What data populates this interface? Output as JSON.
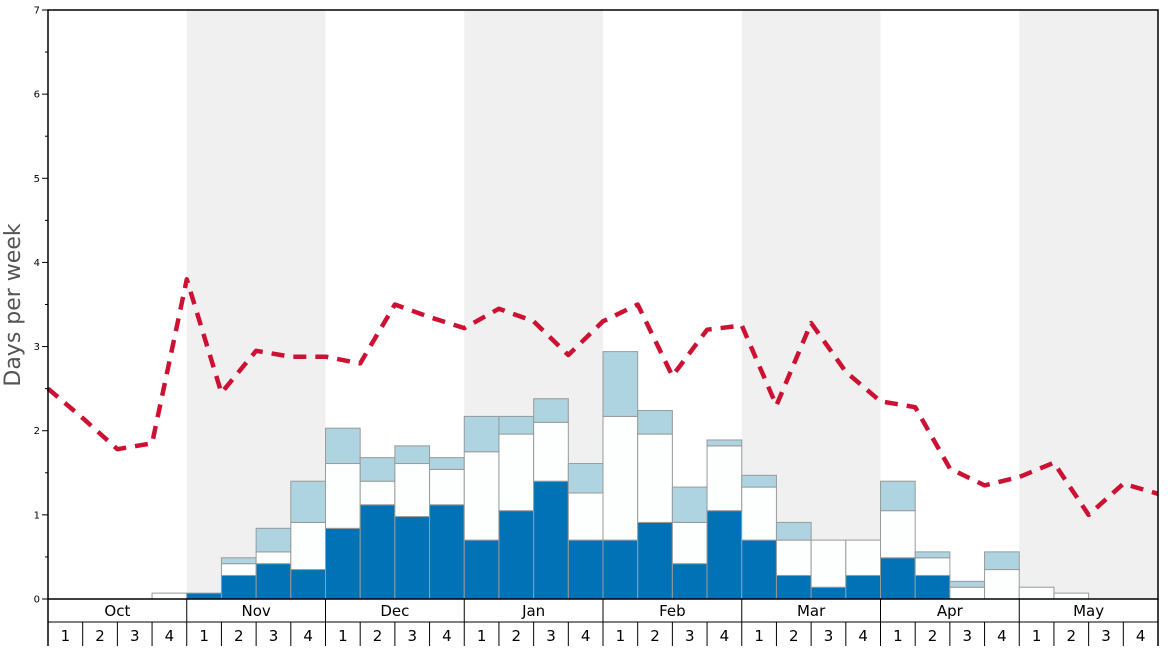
{
  "chart_data": {
    "type": "bar",
    "ylabel": "Days per week",
    "ylim": [
      0,
      7
    ],
    "yticks": [
      "0",
      "1",
      "2",
      "3",
      "4",
      "5",
      "6",
      "7"
    ],
    "months": [
      "Oct",
      "Nov",
      "Dec",
      "Jan",
      "Feb",
      "Mar",
      "Apr",
      "May"
    ],
    "weeks": [
      "1",
      "2",
      "3",
      "4"
    ],
    "shaded_months": [
      "Nov",
      "Jan",
      "Mar",
      "May"
    ],
    "stack_segments": [
      {
        "key": "dark",
        "color": "#0072B5"
      },
      {
        "key": "white",
        "color": "#FDFEFE"
      },
      {
        "key": "light",
        "color": "#ADD4E0"
      }
    ],
    "bars": [
      {
        "month": "Oct",
        "week": 1,
        "dark": 0,
        "white": 0,
        "light": 0
      },
      {
        "month": "Oct",
        "week": 2,
        "dark": 0,
        "white": 0,
        "light": 0
      },
      {
        "month": "Oct",
        "week": 3,
        "dark": 0,
        "white": 0,
        "light": 0
      },
      {
        "month": "Oct",
        "week": 4,
        "dark": 0,
        "white": 0.07,
        "light": 0
      },
      {
        "month": "Nov",
        "week": 1,
        "dark": 0.07,
        "white": 0,
        "light": 0
      },
      {
        "month": "Nov",
        "week": 2,
        "dark": 0.28,
        "white": 0.14,
        "light": 0.07
      },
      {
        "month": "Nov",
        "week": 3,
        "dark": 0.42,
        "white": 0.14,
        "light": 0.28
      },
      {
        "month": "Nov",
        "week": 4,
        "dark": 0.35,
        "white": 0.56,
        "light": 0.49
      },
      {
        "month": "Dec",
        "week": 1,
        "dark": 0.84,
        "white": 0.77,
        "light": 0.42
      },
      {
        "month": "Dec",
        "week": 2,
        "dark": 1.12,
        "white": 0.28,
        "light": 0.28
      },
      {
        "month": "Dec",
        "week": 3,
        "dark": 0.98,
        "white": 0.63,
        "light": 0.21
      },
      {
        "month": "Dec",
        "week": 4,
        "dark": 1.12,
        "white": 0.42,
        "light": 0.14
      },
      {
        "month": "Jan",
        "week": 1,
        "dark": 0.7,
        "white": 1.05,
        "light": 0.42
      },
      {
        "month": "Jan",
        "week": 2,
        "dark": 1.05,
        "white": 0.91,
        "light": 0.21
      },
      {
        "month": "Jan",
        "week": 3,
        "dark": 1.4,
        "white": 0.7,
        "light": 0.28
      },
      {
        "month": "Jan",
        "week": 4,
        "dark": 0.7,
        "white": 0.56,
        "light": 0.35
      },
      {
        "month": "Feb",
        "week": 1,
        "dark": 0.7,
        "white": 1.47,
        "light": 0.77
      },
      {
        "month": "Feb",
        "week": 2,
        "dark": 0.91,
        "white": 1.05,
        "light": 0.28
      },
      {
        "month": "Feb",
        "week": 3,
        "dark": 0.42,
        "white": 0.49,
        "light": 0.42
      },
      {
        "month": "Feb",
        "week": 4,
        "dark": 1.05,
        "white": 0.77,
        "light": 0.07
      },
      {
        "month": "Mar",
        "week": 1,
        "dark": 0.7,
        "white": 0.63,
        "light": 0.14
      },
      {
        "month": "Mar",
        "week": 2,
        "dark": 0.28,
        "white": 0.42,
        "light": 0.21
      },
      {
        "month": "Mar",
        "week": 3,
        "dark": 0.14,
        "white": 0.56,
        "light": 0
      },
      {
        "month": "Mar",
        "week": 4,
        "dark": 0.28,
        "white": 0.42,
        "light": 0
      },
      {
        "month": "Apr",
        "week": 1,
        "dark": 0.49,
        "white": 0.56,
        "light": 0.35
      },
      {
        "month": "Apr",
        "week": 2,
        "dark": 0.28,
        "white": 0.21,
        "light": 0.07
      },
      {
        "month": "Apr",
        "week": 3,
        "dark": 0,
        "white": 0.14,
        "light": 0.07
      },
      {
        "month": "Apr",
        "week": 4,
        "dark": 0,
        "white": 0.35,
        "light": 0.21
      },
      {
        "month": "May",
        "week": 1,
        "dark": 0,
        "white": 0.14,
        "light": 0
      },
      {
        "month": "May",
        "week": 2,
        "dark": 0,
        "white": 0.07,
        "light": 0
      },
      {
        "month": "May",
        "week": 3,
        "dark": 0,
        "white": 0,
        "light": 0
      },
      {
        "month": "May",
        "week": 4,
        "dark": 0,
        "white": 0,
        "light": 0
      }
    ],
    "line": {
      "color": "#CC1133",
      "style": "dashed",
      "values": [
        2.5,
        2.15,
        1.78,
        1.85,
        3.8,
        2.45,
        2.95,
        2.88,
        2.88,
        2.8,
        3.5,
        3.35,
        3.22,
        3.45,
        3.3,
        2.9,
        3.3,
        3.5,
        2.65,
        3.2,
        3.25,
        2.3,
        3.28,
        2.7,
        2.35,
        2.28,
        1.55,
        1.35,
        1.45,
        1.62,
        1.0,
        1.37,
        1.25
      ]
    }
  }
}
